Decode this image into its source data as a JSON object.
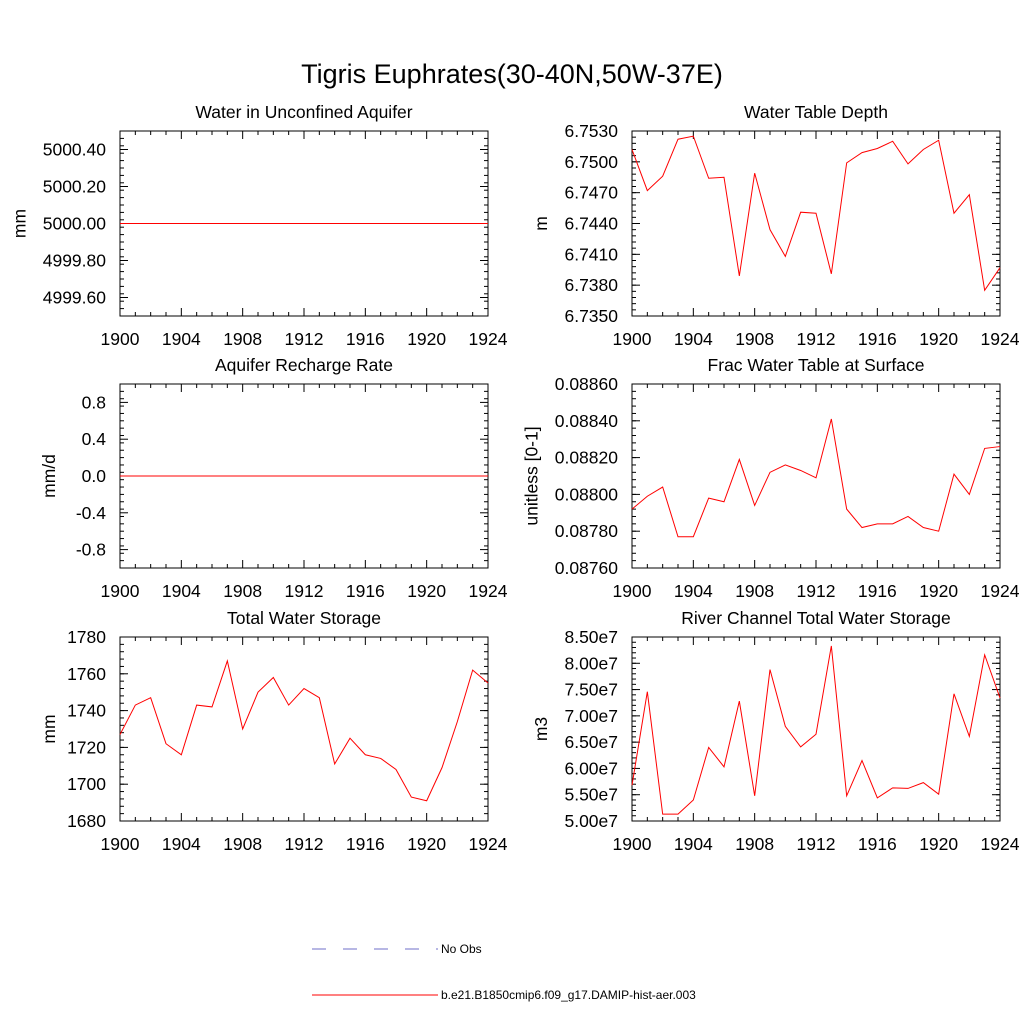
{
  "figure": {
    "title": "Tigris Euphrates(30-40N,50W-37E)",
    "line_color": "#ff0000",
    "obs_color": "#6f6fc8"
  },
  "legend": [
    {
      "label": "No Obs",
      "style": "dashed",
      "color": "#6f6fc8"
    },
    {
      "label": "b.e21.B1850cmip6.f09_g17.DAMIP-hist-aer.003",
      "style": "solid",
      "color": "#ff0000"
    }
  ],
  "chart_data": [
    {
      "type": "line",
      "title": "Water in Unconfined Aquifer",
      "ylabel": "mm",
      "xlim": [
        1900,
        1924
      ],
      "ylim": [
        4999.5,
        5000.5
      ],
      "xticks": [
        "1900",
        "1904",
        "1908",
        "1912",
        "1916",
        "1920",
        "1924"
      ],
      "yticks": [
        "4999.60",
        "4999.80",
        "5000.00",
        "5000.20",
        "5000.40"
      ],
      "x": [
        1900,
        1901,
        1902,
        1903,
        1904,
        1905,
        1906,
        1907,
        1908,
        1909,
        1910,
        1911,
        1912,
        1913,
        1914,
        1915,
        1916,
        1917,
        1918,
        1919,
        1920,
        1921,
        1922,
        1923,
        1924
      ],
      "y": [
        5000,
        5000,
        5000,
        5000,
        5000,
        5000,
        5000,
        5000,
        5000,
        5000,
        5000,
        5000,
        5000,
        5000,
        5000,
        5000,
        5000,
        5000,
        5000,
        5000,
        5000,
        5000,
        5000,
        5000,
        5000
      ]
    },
    {
      "type": "line",
      "title": "Water Table Depth",
      "ylabel": "m",
      "xlim": [
        1900,
        1924
      ],
      "ylim": [
        6.735,
        6.753
      ],
      "xticks": [
        "1900",
        "1904",
        "1908",
        "1912",
        "1916",
        "1920",
        "1924"
      ],
      "yticks": [
        "6.7350",
        "6.7380",
        "6.7410",
        "6.7440",
        "6.7470",
        "6.7500",
        "6.7530"
      ],
      "x": [
        1900,
        1901,
        1902,
        1903,
        1904,
        1905,
        1906,
        1907,
        1908,
        1909,
        1910,
        1911,
        1912,
        1913,
        1914,
        1915,
        1916,
        1917,
        1918,
        1919,
        1920,
        1921,
        1922,
        1923,
        1924
      ],
      "y": [
        6.7512,
        6.7472,
        6.7486,
        6.7522,
        6.7525,
        6.7484,
        6.7485,
        6.7389,
        6.7489,
        6.7434,
        6.7408,
        6.7451,
        6.745,
        6.7391,
        6.7499,
        6.7509,
        6.7513,
        6.752,
        6.7498,
        6.7512,
        6.7521,
        6.745,
        6.7468,
        6.7375,
        6.7397
      ]
    },
    {
      "type": "line",
      "title": "Aquifer Recharge Rate",
      "ylabel": "mm/d",
      "xlim": [
        1900,
        1924
      ],
      "ylim": [
        -1.0,
        1.0
      ],
      "xticks": [
        "1900",
        "1904",
        "1908",
        "1912",
        "1916",
        "1920",
        "1924"
      ],
      "yticks": [
        "-0.8",
        "-0.4",
        "0.0",
        "0.4",
        "0.8"
      ],
      "x": [
        1900,
        1901,
        1902,
        1903,
        1904,
        1905,
        1906,
        1907,
        1908,
        1909,
        1910,
        1911,
        1912,
        1913,
        1914,
        1915,
        1916,
        1917,
        1918,
        1919,
        1920,
        1921,
        1922,
        1923,
        1924
      ],
      "y": [
        0,
        0,
        0,
        0,
        0,
        0,
        0,
        0,
        0,
        0,
        0,
        0,
        0,
        0,
        0,
        0,
        0,
        0,
        0,
        0,
        0,
        0,
        0,
        0,
        0
      ]
    },
    {
      "type": "line",
      "title": "Frac Water Table at Surface",
      "ylabel": "unitless [0-1]",
      "xlim": [
        1900,
        1924
      ],
      "ylim": [
        0.0876,
        0.0886
      ],
      "xticks": [
        "1900",
        "1904",
        "1908",
        "1912",
        "1916",
        "1920",
        "1924"
      ],
      "yticks": [
        "0.08760",
        "0.08780",
        "0.08800",
        "0.08820",
        "0.08840",
        "0.08860"
      ],
      "x": [
        1900,
        1901,
        1902,
        1903,
        1904,
        1905,
        1906,
        1907,
        1908,
        1909,
        1910,
        1911,
        1912,
        1913,
        1914,
        1915,
        1916,
        1917,
        1918,
        1919,
        1920,
        1921,
        1922,
        1923,
        1924
      ],
      "y": [
        0.08792,
        0.08799,
        0.08804,
        0.08777,
        0.08777,
        0.08798,
        0.08796,
        0.08819,
        0.08794,
        0.08812,
        0.08816,
        0.08813,
        0.08809,
        0.08841,
        0.08792,
        0.08782,
        0.08784,
        0.08784,
        0.08788,
        0.08782,
        0.0878,
        0.08811,
        0.088,
        0.08825,
        0.08826
      ]
    },
    {
      "type": "line",
      "title": "Total Water Storage",
      "ylabel": "mm",
      "xlim": [
        1900,
        1924
      ],
      "ylim": [
        1680,
        1780
      ],
      "xticks": [
        "1900",
        "1904",
        "1908",
        "1912",
        "1916",
        "1920",
        "1924"
      ],
      "yticks": [
        "1680",
        "1700",
        "1720",
        "1740",
        "1760",
        "1780"
      ],
      "x": [
        1900,
        1901,
        1902,
        1903,
        1904,
        1905,
        1906,
        1907,
        1908,
        1909,
        1910,
        1911,
        1912,
        1913,
        1914,
        1915,
        1916,
        1917,
        1918,
        1919,
        1920,
        1921,
        1922,
        1923,
        1924
      ],
      "y": [
        1727,
        1743,
        1747,
        1722,
        1716,
        1743,
        1742,
        1767,
        1730,
        1750,
        1758,
        1743,
        1752,
        1747,
        1711,
        1725,
        1716,
        1714,
        1708,
        1693,
        1691,
        1709,
        1734,
        1762,
        1755
      ]
    },
    {
      "type": "line",
      "title": "River Channel Total Water Storage",
      "ylabel": "m3",
      "xlim": [
        1900,
        1924
      ],
      "ylim": [
        50000000,
        85000000
      ],
      "xticks": [
        "1900",
        "1904",
        "1908",
        "1912",
        "1916",
        "1920",
        "1924"
      ],
      "yticks": [
        "5.00e7",
        "5.50e7",
        "6.00e7",
        "6.50e7",
        "7.00e7",
        "7.50e7",
        "8.00e7",
        "8.50e7"
      ],
      "x": [
        1900,
        1901,
        1902,
        1903,
        1904,
        1905,
        1906,
        1907,
        1908,
        1909,
        1910,
        1911,
        1912,
        1913,
        1914,
        1915,
        1916,
        1917,
        1918,
        1919,
        1920,
        1921,
        1922,
        1923,
        1924
      ],
      "y": [
        56800000,
        74600000,
        51300000,
        51300000,
        54000000,
        64000000,
        60300000,
        72800000,
        54800000,
        78800000,
        68000000,
        64100000,
        66500000,
        83300000,
        54800000,
        61500000,
        54400000,
        56300000,
        56200000,
        57300000,
        55100000,
        74200000,
        66100000,
        81600000,
        73400000
      ]
    }
  ]
}
